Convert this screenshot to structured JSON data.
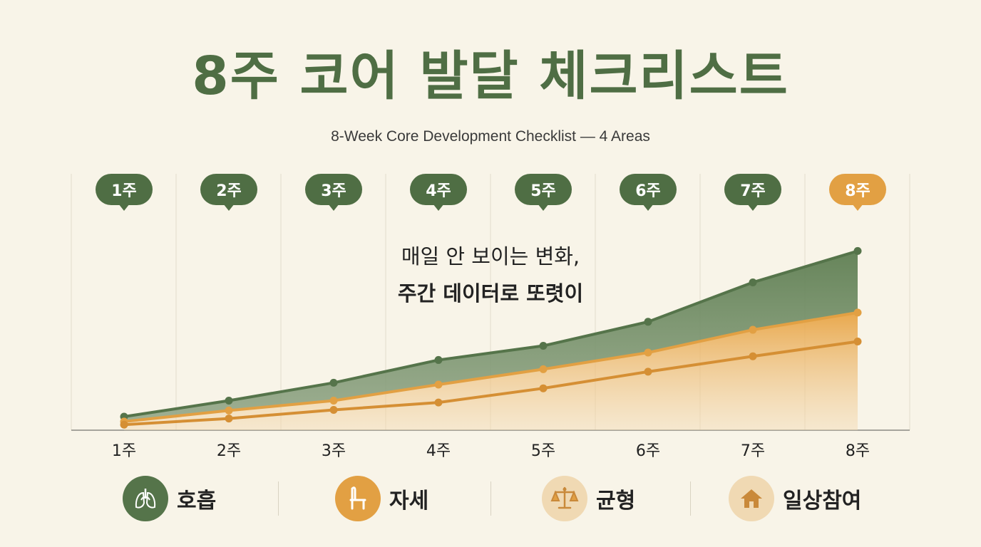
{
  "title": "8주 코어 발달 체크리스트",
  "subtitle": "8-Week Core Development Checklist — 4 Areas",
  "colors": {
    "green": "#5a7a4e",
    "green_dark": "#4f6e44",
    "orange": "#e2a043",
    "orange_dark": "#d58f34",
    "background": "#f8f4e8"
  },
  "chart_data": {
    "type": "area",
    "categories": [
      "1주",
      "2주",
      "3주",
      "4주",
      "5주",
      "6주",
      "7주",
      "8주"
    ],
    "week_badges": [
      "1주",
      "2주",
      "3주",
      "4주",
      "5주",
      "6주",
      "7주",
      "8주"
    ],
    "highlight_week": "8주",
    "series": [
      {
        "color": "#55744a",
        "values": [
          22,
          48,
          77,
          114,
          137,
          176,
          240,
          291
        ]
      },
      {
        "color": "#e2a043",
        "values": [
          14,
          32,
          48,
          74,
          99,
          126,
          163,
          191
        ]
      },
      {
        "color": "#d58f34",
        "values": [
          9,
          19,
          33,
          45,
          68,
          95,
          120,
          144
        ]
      }
    ],
    "ylim": [
      0,
      340
    ],
    "grid": "vertical",
    "annotation": {
      "line1": "매일 안 보이는 변화,",
      "line2": "주간 데이터로 또렷이"
    }
  },
  "legend": [
    {
      "label": "호흡",
      "icon": "lungs-icon",
      "bg": "#55744a"
    },
    {
      "label": "자세",
      "icon": "chair-icon",
      "bg": "#e2a043"
    },
    {
      "label": "균형",
      "icon": "balance-scale-icon",
      "bg": "#f0d9b3"
    },
    {
      "label": "일상참여",
      "icon": "home-icon",
      "bg": "#f0d9b3"
    }
  ]
}
